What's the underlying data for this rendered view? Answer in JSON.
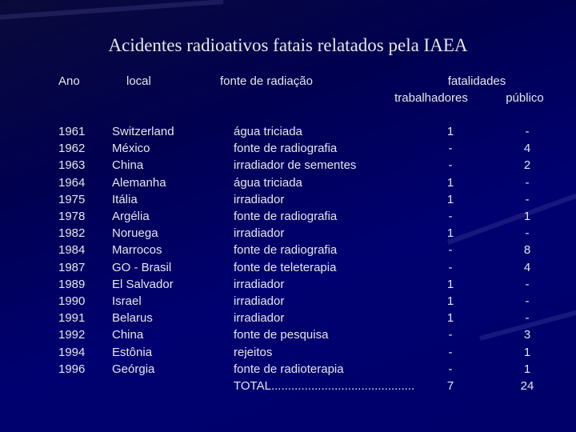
{
  "title": "Acidentes radioativos fatais  relatados pela IAEA",
  "table": {
    "header": {
      "ano": "Ano",
      "local": "local",
      "fonte": "fonte de radiação",
      "fatalidades": "fatalidades",
      "trabalhadores": "trabalhadores",
      "publico": "público"
    },
    "rows": [
      [
        "1961",
        "Switzerland",
        "água triciada",
        "1",
        "-"
      ],
      [
        "1962",
        "México",
        "fonte de radiografia",
        "-",
        "4"
      ],
      [
        "1963",
        "China",
        "irradiador de sementes",
        "-",
        "2"
      ],
      [
        "1964",
        "Alemanha",
        "água triciada",
        "1",
        "-"
      ],
      [
        "1975",
        "Itália",
        "irradiador",
        "1",
        "-"
      ],
      [
        "1978",
        "Argélia",
        "fonte de radiografia",
        "-",
        "1"
      ],
      [
        "1982",
        "Noruega",
        "irradiador",
        "1",
        "-"
      ],
      [
        "1984",
        "Marrocos",
        "fonte de radiografia",
        "-",
        "8"
      ],
      [
        "1987",
        "GO - Brasil",
        "fonte de teleterapia",
        "-",
        "4"
      ],
      [
        "1989",
        "El Salvador",
        "irradiador",
        "1",
        "-"
      ],
      [
        "1990",
        "Israel",
        "irradiador",
        "1",
        "-"
      ],
      [
        "1991",
        "Belarus",
        "irradiador",
        "1",
        "-"
      ],
      [
        "1992",
        "China",
        "fonte de pesquisa",
        "-",
        "3"
      ],
      [
        "1994",
        "Estônia",
        "rejeitos",
        "-",
        "1"
      ],
      [
        "1996",
        "Geórgia",
        "fonte de radioterapia",
        "-",
        "1"
      ]
    ],
    "total": {
      "label": "TOTAL...........................................",
      "trabalhadores": "7",
      "publico": "24"
    }
  }
}
